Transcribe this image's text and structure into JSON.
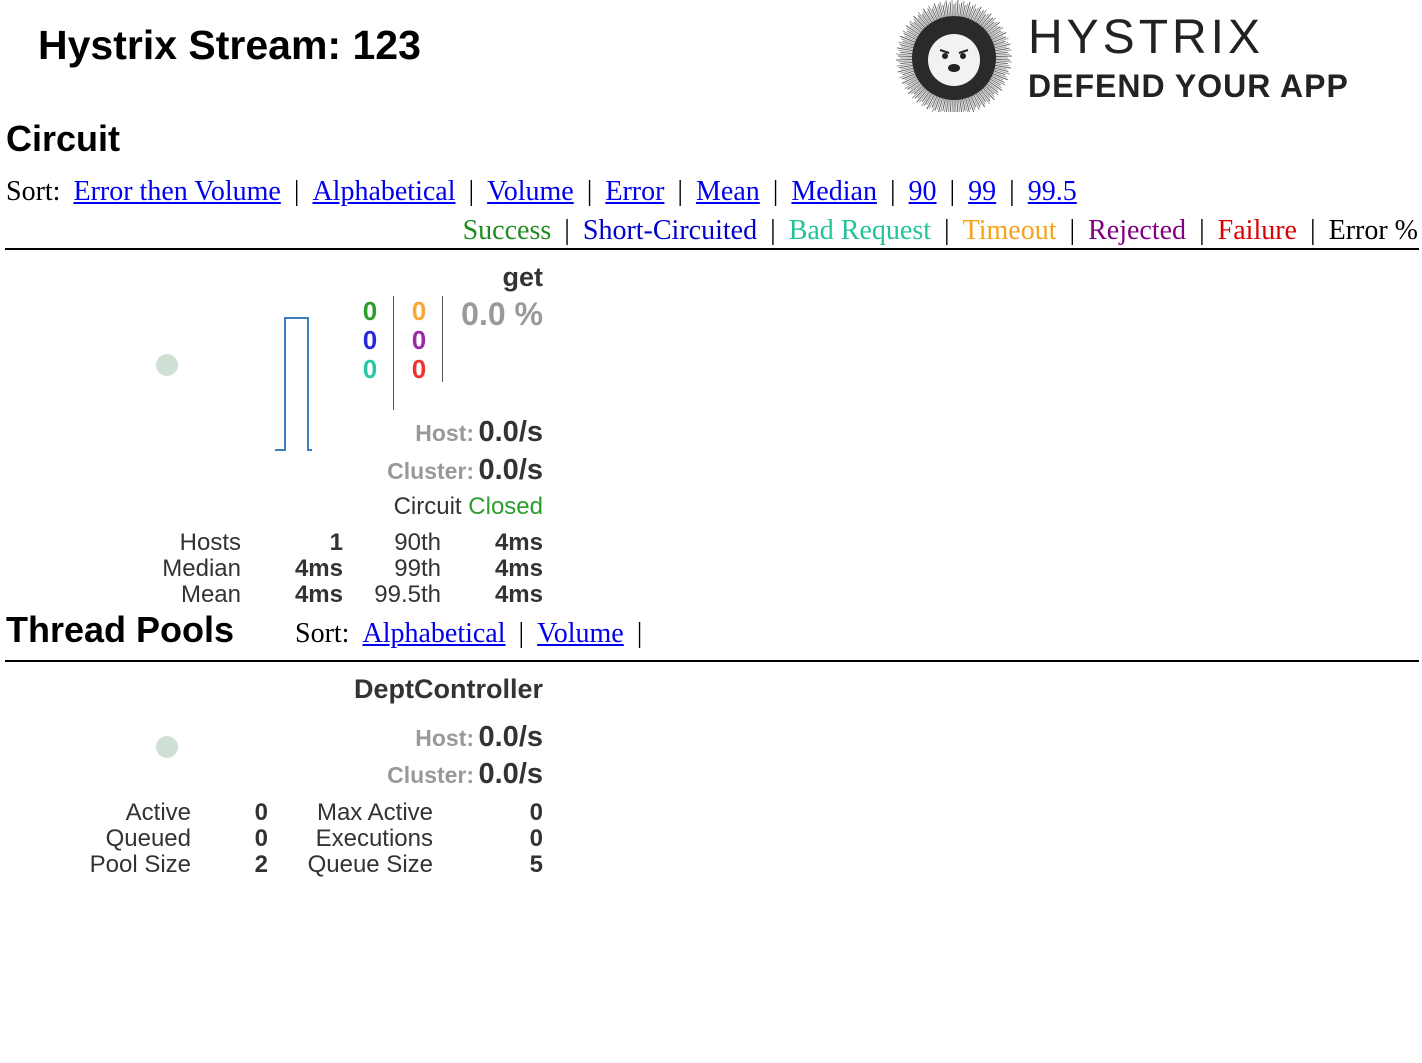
{
  "header": {
    "title": "Hystrix Stream: 123",
    "logo_line1": "HYSTRIX",
    "logo_line2": "DEFEND YOUR APP"
  },
  "circuit_section": {
    "heading": "Circuit",
    "sort_label": "Sort:",
    "sort_options": [
      "Error then Volume",
      "Alphabetical",
      "Volume",
      "Error",
      "Mean",
      "Median",
      "90",
      "99",
      "99.5"
    ],
    "legend": [
      {
        "label": "Success",
        "color": "#228b22"
      },
      {
        "label": "Short-Circuited",
        "color": "#0000cc"
      },
      {
        "label": "Bad Request",
        "color": "#22c39a"
      },
      {
        "label": "Timeout",
        "color": "#f5a31a"
      },
      {
        "label": "Rejected",
        "color": "#800080"
      },
      {
        "label": "Failure",
        "color": "#dd0000"
      },
      {
        "label": "Error %",
        "color": "#000000"
      }
    ]
  },
  "circuit": {
    "name": "get",
    "counts_left": [
      {
        "value": "0",
        "color": "#2d9d2d"
      },
      {
        "value": "0",
        "color": "#2b2bd9"
      },
      {
        "value": "0",
        "color": "#28c7a6"
      }
    ],
    "counts_right": [
      {
        "value": "0",
        "color": "#f8a733"
      },
      {
        "value": "0",
        "color": "#9a2aa8"
      },
      {
        "value": "0",
        "color": "#ee3333"
      }
    ],
    "error_pct": "0.0 %",
    "host_label": "Host:",
    "host_rate": "0.0/s",
    "cluster_label": "Cluster:",
    "cluster_rate": "0.0/s",
    "status_prefix": "Circuit",
    "status_value": "Closed",
    "status_color": "#2d9d2d",
    "stats": {
      "hosts_label": "Hosts",
      "hosts": "1",
      "median_label": "Median",
      "median": "4ms",
      "mean_label": "Mean",
      "mean": "4ms",
      "p90_label": "90th",
      "p90": "4ms",
      "p99_label": "99th",
      "p99": "4ms",
      "p995_label": "99.5th",
      "p995": "4ms"
    }
  },
  "threadpool_section": {
    "heading": "Thread Pools",
    "sort_label": "Sort:",
    "sort_options": [
      "Alphabetical",
      "Volume"
    ]
  },
  "threadpool": {
    "name": "DeptController",
    "host_label": "Host:",
    "host_rate": "0.0/s",
    "cluster_label": "Cluster:",
    "cluster_rate": "0.0/s",
    "stats": {
      "active_label": "Active",
      "active": "0",
      "queued_label": "Queued",
      "queued": "0",
      "pool_size_label": "Pool Size",
      "pool_size": "2",
      "max_active_label": "Max Active",
      "max_active": "0",
      "executions_label": "Executions",
      "executions": "0",
      "queue_size_label": "Queue Size",
      "queue_size": "5"
    }
  }
}
